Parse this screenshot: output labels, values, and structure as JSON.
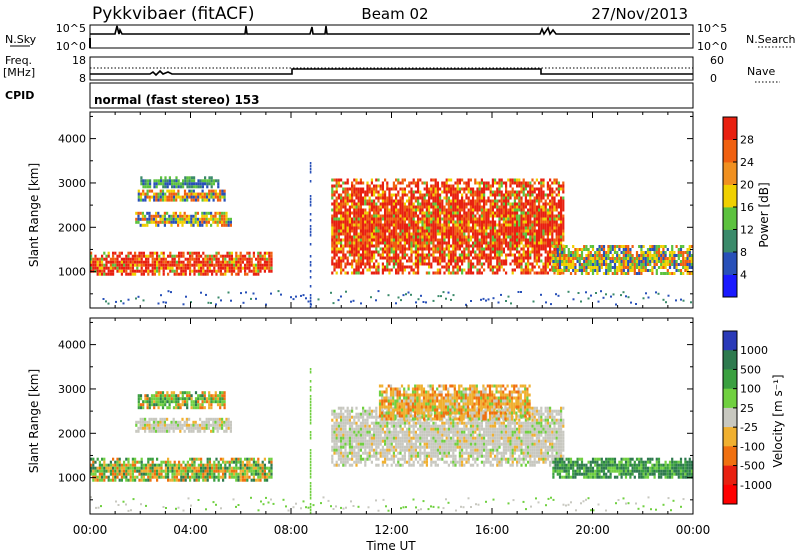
{
  "header": {
    "station": "Pykkvibaer (fitACF)",
    "beam": "Beam 02",
    "date": "27/Nov/2013"
  },
  "strip_panels": {
    "nsky_label": "N.Sky",
    "nsky_ticks": [
      "10^5",
      "10^0"
    ],
    "nsearch_label": "N.Search",
    "nsearch_ticks": [
      "10^5",
      "10^0"
    ],
    "freq_label": "Freq.",
    "freq_unit": "[MHz]",
    "freq_ticks": [
      "18",
      "8"
    ],
    "nave_label": "Nave",
    "nave_ticks": [
      "60",
      "0"
    ],
    "cpid_label": "CPID",
    "cpid_text": "normal (fast stereo) 153"
  },
  "chart_data": [
    {
      "type": "heatmap",
      "quantity": "power",
      "ylabel": "Slant Range [km]",
      "ylim": [
        180,
        4600
      ],
      "yticks": [
        "1000",
        "2000",
        "3000",
        "4000"
      ],
      "colorbar_label": "Power [dB]",
      "colorbar_ticks": [
        "4",
        "8",
        "12",
        "16",
        "20",
        "24",
        "28"
      ],
      "colorbar_colors": [
        "#1a1aff",
        "#2850b8",
        "#3a8a6a",
        "#5cc23e",
        "#f0d000",
        "#f09020",
        "#f06010",
        "#e82010"
      ],
      "xlim_hours": [
        0,
        24
      ],
      "echo_regions": [
        {
          "t0": 0.0,
          "t1": 7.2,
          "r0": 950,
          "r1": 1450,
          "level": "high"
        },
        {
          "t0": 1.8,
          "t1": 5.6,
          "r0": 2050,
          "r1": 2350,
          "level": "mid"
        },
        {
          "t0": 1.9,
          "t1": 5.4,
          "r0": 2600,
          "r1": 2850,
          "level": "mid"
        },
        {
          "t0": 2.0,
          "t1": 5.1,
          "r0": 2900,
          "r1": 3150,
          "level": "low"
        },
        {
          "t0": 9.6,
          "t1": 18.8,
          "r0": 1000,
          "r1": 3100,
          "level": "high"
        },
        {
          "t0": 18.4,
          "t1": 24.0,
          "r0": 950,
          "r1": 1600,
          "level": "mid"
        }
      ]
    },
    {
      "type": "heatmap",
      "quantity": "velocity",
      "ylabel": "Slant Range [km]",
      "ylim": [
        180,
        4600
      ],
      "yticks": [
        "1000",
        "2000",
        "3000",
        "4000"
      ],
      "xlabel": "Time UT",
      "xticks": [
        "00:00",
        "04:00",
        "08:00",
        "12:00",
        "16:00",
        "20:00",
        "00:00"
      ],
      "xlim_hours": [
        0,
        24
      ],
      "colorbar_label": "Velocity [m s⁻¹]",
      "colorbar_ticks": [
        "1000",
        "500",
        "100",
        "25",
        "-25",
        "-100",
        "-500",
        "-1000"
      ],
      "colorbar_colors": [
        "#2a3ab8",
        "#2e7a4e",
        "#3aa040",
        "#70d040",
        "#c8c8c0",
        "#f0b030",
        "#f07010",
        "#e82010",
        "#ff0000"
      ],
      "echo_regions": [
        {
          "t0": 0.0,
          "t1": 7.2,
          "r0": 950,
          "r1": 1450,
          "level": "mixed"
        },
        {
          "t0": 1.8,
          "t1": 5.6,
          "r0": 2050,
          "r1": 2350,
          "level": "ground"
        },
        {
          "t0": 1.9,
          "t1": 5.4,
          "r0": 2600,
          "r1": 2950,
          "level": "mixed"
        },
        {
          "t0": 9.6,
          "t1": 18.8,
          "r0": 1300,
          "r1": 2600,
          "level": "ground"
        },
        {
          "t0": 11.5,
          "t1": 17.5,
          "r0": 2300,
          "r1": 3100,
          "level": "negative"
        },
        {
          "t0": 18.4,
          "t1": 24.0,
          "r0": 1000,
          "r1": 1450,
          "level": "positive"
        }
      ]
    }
  ]
}
